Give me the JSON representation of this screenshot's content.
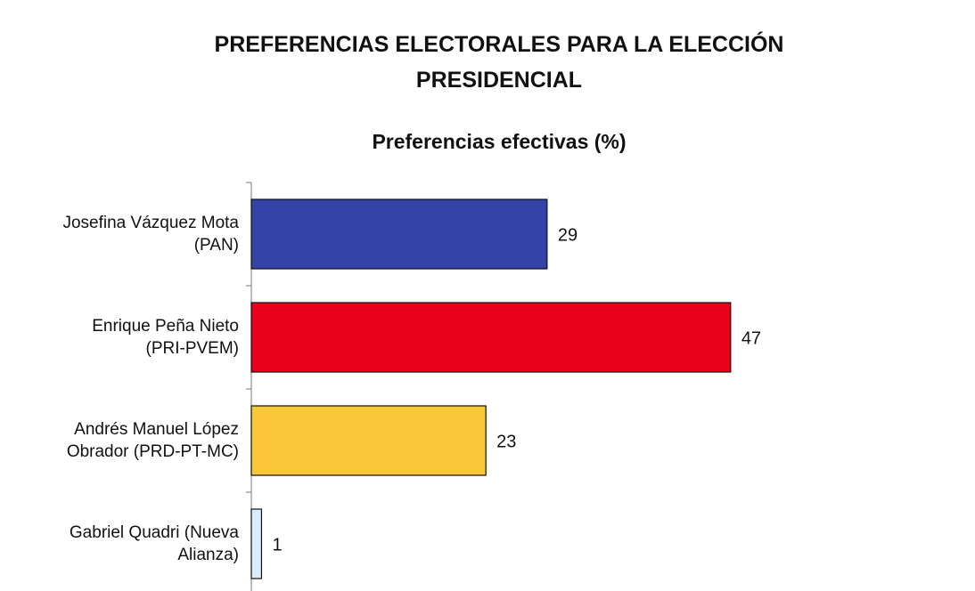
{
  "chart_data": {
    "type": "bar",
    "orientation": "horizontal",
    "title": "PREFERENCIAS ELECTORALES PARA LA ELECCIÓN\nPRESIDENCIAL",
    "subtitle": "Preferencias efectivas (%)",
    "categories": [
      "Josefina Vázquez Mota\n(PAN)",
      "Enrique Peña Nieto\n(PRI-PVEM)",
      "Andrés Manuel López\nObrador (PRD-PT-MC)",
      "Gabriel Quadri (Nueva\nAlianza)"
    ],
    "values": [
      29,
      47,
      23,
      1
    ],
    "colors": [
      "#3343a6",
      "#e8001a",
      "#f8c83a",
      "#d8eef8"
    ],
    "xlim": [
      0,
      70
    ]
  }
}
